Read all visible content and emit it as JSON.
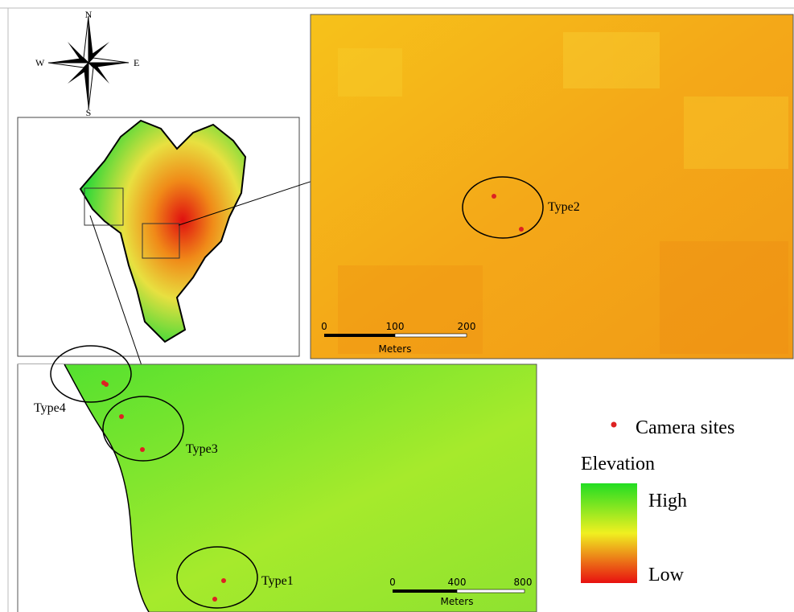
{
  "compass": {
    "north": "N",
    "south": "S",
    "east": "E",
    "west": "W"
  },
  "detail_orange": {
    "site_label": "Type2",
    "scale": {
      "ticks": [
        0,
        100,
        200
      ],
      "unit": "Meters"
    }
  },
  "detail_green": {
    "site_labels": [
      "Type4",
      "Type3",
      "Type1"
    ],
    "scale": {
      "ticks": [
        0,
        400,
        800
      ],
      "unit": "Meters"
    }
  },
  "legend": {
    "camera_sites": "Camera sites",
    "elevation": "Elevation",
    "high": "High",
    "low": "Low"
  }
}
